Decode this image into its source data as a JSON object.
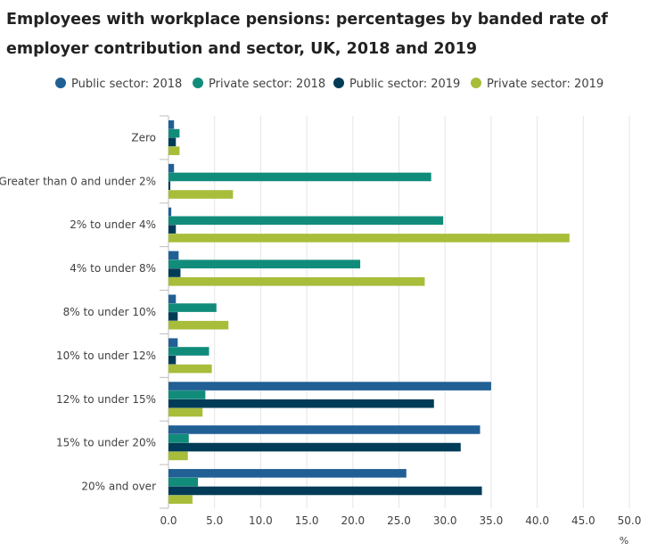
{
  "title": "Employees with workplace pensions: percentages by banded rate of employer contribution and sector, UK, 2018 and 2019",
  "chart_data": {
    "type": "bar",
    "orientation": "horizontal",
    "title": "Employees with workplace pensions: percentages by banded rate of employer contribution and sector, UK, 2018 and 2019",
    "categories": [
      "Zero",
      "Greater than 0 and under 2%",
      "2% to under 4%",
      "4% to under 8%",
      "8% to under 10%",
      "10% to under 12%",
      "12% to under 15%",
      "15% to under 20%",
      "20% and over"
    ],
    "series": [
      {
        "name": "Public sector: 2018",
        "color": "#206095",
        "values": [
          0.6,
          0.6,
          0.3,
          1.1,
          0.8,
          1.0,
          35.0,
          33.8,
          25.8
        ]
      },
      {
        "name": "Private sector: 2018",
        "color": "#118c7b",
        "values": [
          1.2,
          28.5,
          29.8,
          20.8,
          5.2,
          4.4,
          4.0,
          2.2,
          3.2
        ]
      },
      {
        "name": "Public sector: 2019",
        "color": "#003c57",
        "values": [
          0.8,
          0.2,
          0.8,
          1.3,
          1.0,
          0.8,
          28.8,
          31.7,
          34.0
        ]
      },
      {
        "name": "Private sector: 2019",
        "color": "#a8bd3a",
        "values": [
          1.2,
          7.0,
          43.5,
          27.8,
          6.5,
          4.7,
          3.7,
          2.1,
          2.6
        ]
      }
    ],
    "xlabel": "%",
    "xlim": [
      0,
      50
    ],
    "xticks": [
      "0.0",
      "5.0",
      "10.0",
      "15.0",
      "20.0",
      "25.0",
      "30.0",
      "35.0",
      "40.0",
      "45.0",
      "50.0"
    ],
    "grid": true,
    "legend": "top"
  }
}
